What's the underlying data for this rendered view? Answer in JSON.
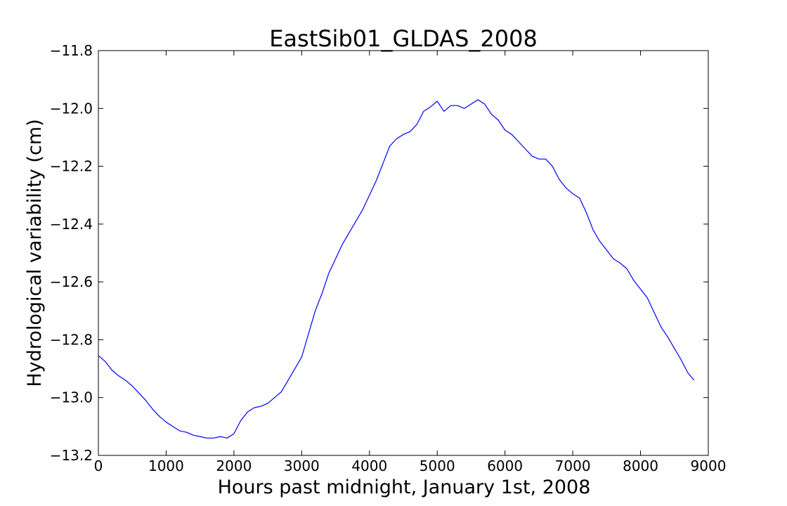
{
  "chart_data": {
    "type": "line",
    "title": "EastSib01_GLDAS_2008",
    "xlabel": "Hours past midnight, January 1st, 2008",
    "ylabel": "Hydrological variability (cm)",
    "xlim": [
      0,
      9000
    ],
    "ylim": [
      -13.2,
      -11.8
    ],
    "xticks": [
      0,
      1000,
      2000,
      3000,
      4000,
      5000,
      6000,
      7000,
      8000,
      9000
    ],
    "xtick_labels": [
      "0",
      "1000",
      "2000",
      "3000",
      "4000",
      "5000",
      "6000",
      "7000",
      "8000",
      "9000"
    ],
    "yticks": [
      -11.8,
      -12.0,
      -12.2,
      -12.4,
      -12.6,
      -12.8,
      -13.0,
      -13.2
    ],
    "ytick_labels": [
      "−11.8",
      "−12.0",
      "−12.2",
      "−12.4",
      "−12.6",
      "−12.8",
      "−13.0",
      "−13.2"
    ],
    "grid": false,
    "series": [
      {
        "color": "#0000ff",
        "x": [
          0,
          100,
          200,
          300,
          400,
          500,
          600,
          700,
          800,
          900,
          1000,
          1100,
          1200,
          1300,
          1400,
          1500,
          1600,
          1700,
          1800,
          1900,
          2000,
          2100,
          2200,
          2300,
          2400,
          2500,
          2600,
          2700,
          2800,
          2900,
          3000,
          3100,
          3200,
          3300,
          3400,
          3500,
          3600,
          3700,
          3800,
          3900,
          4000,
          4100,
          4200,
          4300,
          4400,
          4500,
          4600,
          4700,
          4800,
          4900,
          5000,
          5100,
          5200,
          5300,
          5400,
          5500,
          5600,
          5700,
          5800,
          5900,
          6000,
          6100,
          6200,
          6300,
          6400,
          6500,
          6600,
          6700,
          6800,
          6900,
          7000,
          7100,
          7200,
          7300,
          7400,
          7500,
          7600,
          7700,
          7800,
          7900,
          8000,
          8100,
          8200,
          8300,
          8400,
          8500,
          8600,
          8700,
          8790
        ],
        "y": [
          -12.855,
          -12.875,
          -12.905,
          -12.925,
          -12.94,
          -12.96,
          -12.985,
          -13.01,
          -13.04,
          -13.065,
          -13.085,
          -13.1,
          -13.115,
          -13.12,
          -13.13,
          -13.135,
          -13.14,
          -13.14,
          -13.135,
          -13.14,
          -13.125,
          -13.08,
          -13.05,
          -13.035,
          -13.03,
          -13.02,
          -13.0,
          -12.98,
          -12.94,
          -12.9,
          -12.86,
          -12.78,
          -12.7,
          -12.64,
          -12.57,
          -12.52,
          -12.47,
          -12.43,
          -12.39,
          -12.35,
          -12.3,
          -12.25,
          -12.19,
          -12.13,
          -12.105,
          -12.09,
          -12.08,
          -12.055,
          -12.01,
          -11.995,
          -11.975,
          -12.01,
          -11.99,
          -11.99,
          -12.0,
          -11.985,
          -11.97,
          -11.985,
          -12.02,
          -12.04,
          -12.075,
          -12.09,
          -12.115,
          -12.14,
          -12.165,
          -12.175,
          -12.175,
          -12.2,
          -12.245,
          -12.275,
          -12.295,
          -12.31,
          -12.36,
          -12.42,
          -12.46,
          -12.49,
          -12.52,
          -12.535,
          -12.555,
          -12.595,
          -12.625,
          -12.655,
          -12.705,
          -12.755,
          -12.79,
          -12.83,
          -12.87,
          -12.915,
          -12.94
        ]
      }
    ]
  }
}
